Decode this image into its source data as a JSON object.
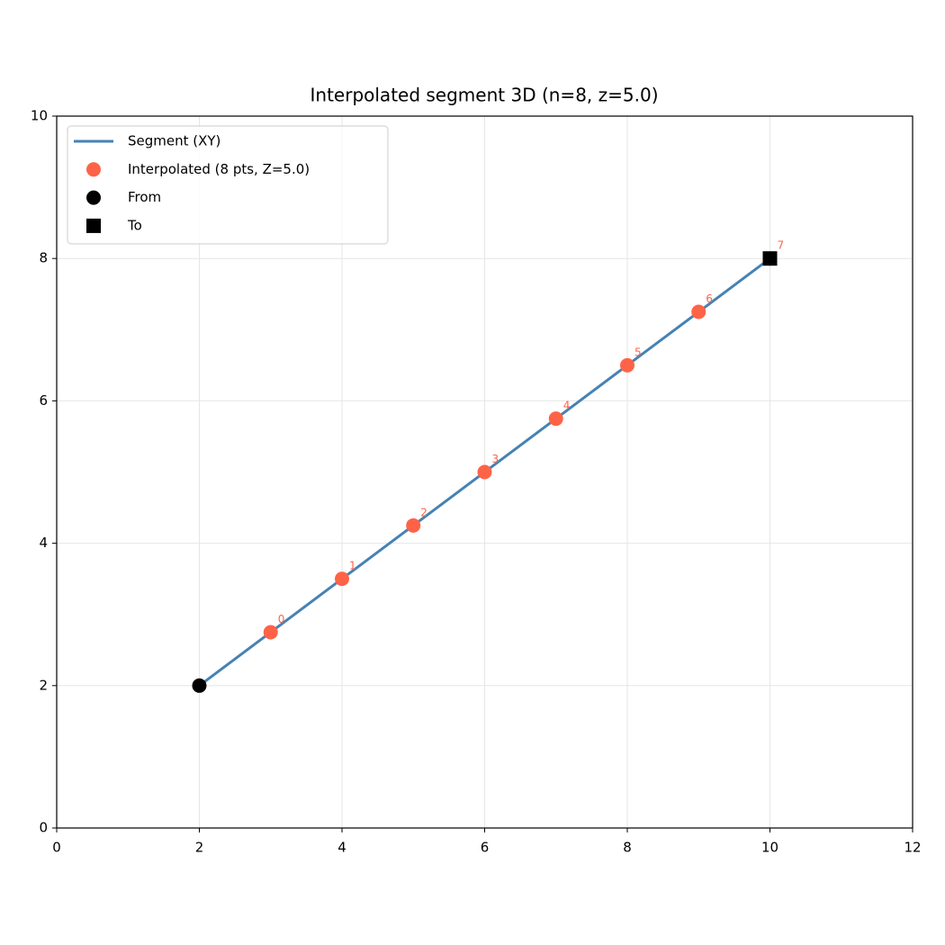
{
  "chart_data": {
    "type": "line",
    "title": "Interpolated segment 3D (n=8, z=5.0)",
    "xlim": [
      0,
      12
    ],
    "ylim": [
      0,
      10
    ],
    "xticks": [
      0,
      2,
      4,
      6,
      8,
      10,
      12
    ],
    "yticks": [
      0,
      2,
      4,
      6,
      8,
      10
    ],
    "grid": true,
    "legend": "upper left",
    "series": [
      {
        "name": "Segment (XY)",
        "color": "#4682b4",
        "style": "line",
        "x": [
          2,
          10
        ],
        "values": [
          2,
          8
        ]
      },
      {
        "name": "Interpolated (8 pts, Z=5.0)",
        "color": "#ff6347",
        "style": "circle",
        "x": [
          3,
          4,
          5,
          6,
          7,
          8,
          9,
          10
        ],
        "values": [
          2.75,
          3.5,
          4.25,
          5.0,
          5.75,
          6.5,
          7.25,
          8.0
        ],
        "labels": [
          "0",
          "1",
          "2",
          "3",
          "4",
          "5",
          "6",
          "7"
        ]
      },
      {
        "name": "From",
        "color": "#000000",
        "style": "circle",
        "x": [
          2
        ],
        "values": [
          2
        ]
      },
      {
        "name": "To",
        "color": "#000000",
        "style": "square",
        "x": [
          10
        ],
        "values": [
          8
        ]
      }
    ]
  }
}
